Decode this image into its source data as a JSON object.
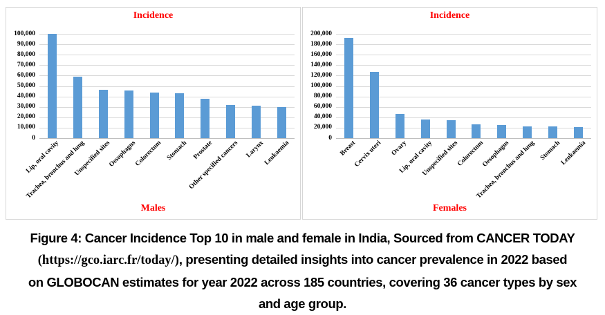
{
  "colors": {
    "bar": "#5B9BD5",
    "gridline": "#D9D9D9",
    "axis_line": "#BFBFBF",
    "title_red": "#FF0000",
    "text": "#000000",
    "panel_border": "#D6D6D6"
  },
  "chart_data": [
    {
      "type": "bar",
      "title": "Incidence",
      "xlabel": "Males",
      "categories": [
        "Lip, oral cavity",
        "Trachea, bronchus and lung",
        "Unspecified sites",
        "Oesophagus",
        "Colorectum",
        "Stomach",
        "Prostate",
        "Other specified cancers",
        "Larynx",
        "Leukaemia"
      ],
      "values": [
        100000,
        59000,
        46500,
        45500,
        43500,
        43000,
        38000,
        31500,
        31000,
        29500
      ],
      "ylim": [
        0,
        100000
      ],
      "ytick": 10000,
      "grid": true,
      "legend": "none",
      "bar_color": "#5B9BD5"
    },
    {
      "type": "bar",
      "title": "Incidence",
      "xlabel": "Females",
      "categories": [
        "Breast",
        "Cervix uteri",
        "Ovary",
        "Lip, oral cavity",
        "Unspecified sites",
        "Colorectum",
        "Oesophagus",
        "Trachea, bronchus and lung",
        "Stomach",
        "Leukaemia"
      ],
      "values": [
        192000,
        127000,
        47000,
        36000,
        34000,
        27000,
        25000,
        23000,
        22000,
        21000
      ],
      "ylim": [
        0,
        200000
      ],
      "ytick": 20000,
      "grid": true,
      "legend": "none",
      "bar_color": "#5B9BD5"
    }
  ],
  "caption": {
    "line1": "Figure 4: Cancer Incidence Top 10 in male and female in India, Sourced from CANCER TODAY",
    "line2_url": "(https://gco.iarc.fr/today/)",
    "line2_rest": ", presenting detailed insights into cancer prevalence in 2022 based",
    "line3": "on GLOBOCAN estimates for year 2022 across 185 countries, covering 36 cancer types by sex",
    "line4": "and age group."
  }
}
